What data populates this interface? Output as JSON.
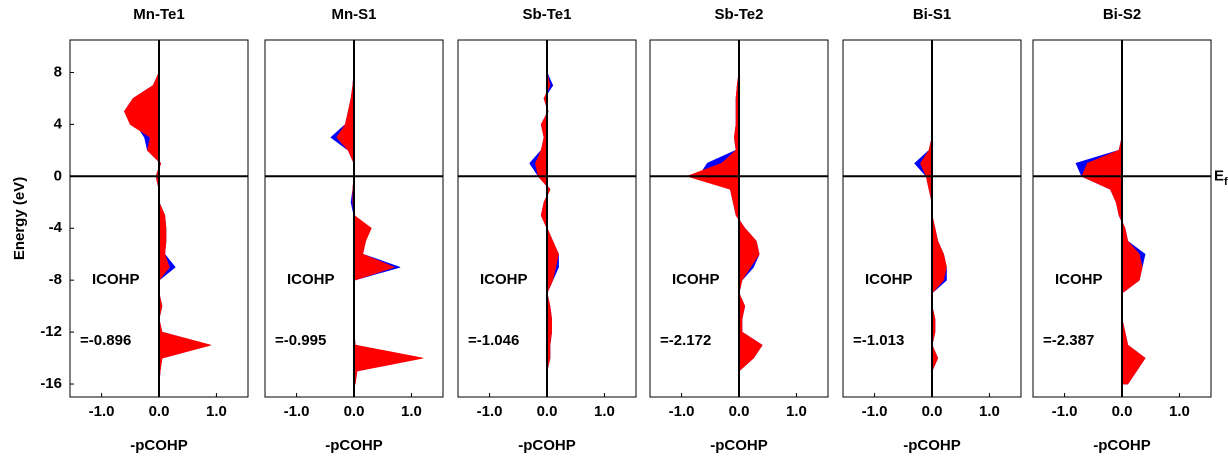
{
  "chart_data": [
    {
      "type": "area",
      "title": "Mn-Te1",
      "xlabel": "-pCOHP",
      "ylabel": "Energy (eV)",
      "annotation": "ICOHP",
      "icohp_label": "=-0.896",
      "xlim": [
        -1.55,
        1.55
      ],
      "ylim": [
        -17,
        10.5
      ],
      "xticks": [
        {
          "value": -1,
          "label": "-1.0"
        },
        {
          "value": 0,
          "label": "0.0"
        },
        {
          "value": 1,
          "label": "1.0"
        }
      ],
      "yticks": [
        -16,
        -12,
        -8,
        -4,
        0,
        4,
        8
      ],
      "y": [
        -16,
        -15,
        -14,
        -13,
        -12,
        -11,
        -10,
        -9,
        -8,
        -7,
        -6,
        -5,
        -4,
        -3,
        -2,
        -1,
        0,
        1,
        2,
        3,
        4,
        5,
        6,
        7,
        8
      ],
      "series": [
        {
          "color": "#0000ff",
          "values": [
            0,
            0.02,
            0.05,
            0.88,
            0.05,
            0,
            0.05,
            0,
            0,
            0.28,
            0.1,
            0.12,
            0.12,
            0.1,
            0,
            0,
            -0.05,
            0.03,
            -0.2,
            -0.25,
            -0.4,
            -0.6,
            -0.45,
            -0.1,
            0
          ]
        },
        {
          "color": "#ff0000",
          "values": [
            0,
            0.02,
            0.05,
            0.9,
            0.05,
            0,
            0.05,
            0,
            0,
            0.18,
            0.1,
            0.12,
            0.12,
            0.1,
            0,
            0,
            -0.05,
            0.03,
            -0.2,
            -0.15,
            -0.5,
            -0.6,
            -0.45,
            -0.1,
            0
          ]
        }
      ]
    },
    {
      "type": "area",
      "title": "Mn-S1",
      "xlabel": "-pCOHP",
      "annotation": "ICOHP",
      "icohp_label": "=-0.995",
      "xlim": [
        -1.55,
        1.55
      ],
      "ylim": [
        -17,
        10.5
      ],
      "xticks": [
        {
          "value": -1,
          "label": "-1.0"
        },
        {
          "value": 0,
          "label": "0.0"
        },
        {
          "value": 1,
          "label": "1.0"
        }
      ],
      "y": [
        -16,
        -15,
        -14,
        -13,
        -12,
        -11,
        -10,
        -9,
        -8,
        -7,
        -6,
        -5,
        -4,
        -3,
        -2,
        -1,
        0,
        1,
        2,
        3,
        4,
        5,
        6,
        7,
        8
      ],
      "series": [
        {
          "color": "#0000ff",
          "values": [
            0.02,
            0.05,
            1.15,
            0.02,
            0,
            0,
            0,
            0,
            0,
            0.8,
            0.15,
            0.2,
            0.25,
            0,
            -0.05,
            -0.02,
            0,
            0,
            -0.1,
            -0.4,
            -0.15,
            -0.1,
            -0.05,
            -0.02,
            0
          ]
        },
        {
          "color": "#ff0000",
          "values": [
            0.02,
            0.05,
            1.2,
            0.02,
            0,
            0,
            0,
            0,
            0,
            0.7,
            0.15,
            0.2,
            0.3,
            0,
            -0.02,
            -0.02,
            0,
            0,
            -0.1,
            -0.3,
            -0.15,
            -0.1,
            -0.05,
            -0.02,
            0
          ]
        }
      ]
    },
    {
      "type": "area",
      "title": "Sb-Te1",
      "xlabel": "-pCOHP",
      "annotation": "ICOHP",
      "icohp_label": "=-1.046",
      "xlim": [
        -1.55,
        1.55
      ],
      "ylim": [
        -17,
        10.5
      ],
      "xticks": [
        {
          "value": -1,
          "label": "-1.0"
        },
        {
          "value": 0,
          "label": "0.0"
        },
        {
          "value": 1,
          "label": "1.0"
        }
      ],
      "y": [
        -16,
        -15,
        -14,
        -13,
        -12,
        -11,
        -10,
        -9,
        -8,
        -7,
        -6,
        -5,
        -4,
        -3,
        -2,
        -1,
        0,
        1,
        2,
        3,
        4,
        5,
        6,
        7,
        8
      ],
      "series": [
        {
          "color": "#0000ff",
          "values": [
            0,
            0,
            0.05,
            0.05,
            0.08,
            0.08,
            0.05,
            0,
            0.1,
            0.2,
            0.2,
            0.1,
            0,
            -0.1,
            -0.05,
            0.05,
            -0.15,
            -0.3,
            -0.1,
            -0.05,
            -0.1,
            0.02,
            -0.05,
            0.1,
            0
          ]
        },
        {
          "color": "#ff0000",
          "values": [
            0,
            0,
            0.05,
            0.05,
            0.08,
            0.08,
            0.05,
            0,
            0.1,
            0.15,
            0.2,
            0.1,
            0,
            -0.1,
            -0.05,
            0.05,
            -0.15,
            -0.2,
            -0.1,
            -0.05,
            -0.1,
            0.02,
            -0.05,
            0.05,
            0
          ]
        }
      ]
    },
    {
      "type": "area",
      "title": "Sb-Te2",
      "xlabel": "-pCOHP",
      "annotation": "ICOHP",
      "icohp_label": "=-2.172",
      "xlim": [
        -1.55,
        1.55
      ],
      "ylim": [
        -17,
        10.5
      ],
      "xticks": [
        {
          "value": -1,
          "label": "-1.0"
        },
        {
          "value": 0,
          "label": "0.0"
        },
        {
          "value": 1,
          "label": "1.0"
        }
      ],
      "y": [
        -16,
        -15,
        -14,
        -13,
        -12,
        -11,
        -10,
        -9,
        -8,
        -7,
        -6,
        -5,
        -4,
        -3,
        -2,
        -1,
        0,
        1,
        2,
        3,
        4,
        5,
        6,
        7,
        8
      ],
      "series": [
        {
          "color": "#0000ff",
          "values": [
            0,
            0,
            0.25,
            0.4,
            0.05,
            0.05,
            0.1,
            0,
            0.05,
            0.25,
            0.35,
            0.3,
            0.1,
            -0.05,
            -0.1,
            -0.15,
            -0.7,
            -0.55,
            -0.05,
            -0.08,
            -0.05,
            -0.05,
            -0.05,
            -0.03,
            0
          ]
        },
        {
          "color": "#ff0000",
          "values": [
            0,
            0,
            0.25,
            0.4,
            0.05,
            0.05,
            0.1,
            0,
            0.05,
            0.2,
            0.35,
            0.3,
            0.1,
            -0.05,
            -0.1,
            -0.15,
            -0.9,
            -0.3,
            -0.05,
            -0.08,
            -0.05,
            -0.05,
            -0.05,
            -0.03,
            0
          ]
        }
      ]
    },
    {
      "type": "area",
      "title": "Bi-S1",
      "xlabel": "-pCOHP",
      "annotation": "ICOHP",
      "icohp_label": "=-1.013",
      "xlim": [
        -1.55,
        1.55
      ],
      "ylim": [
        -17,
        10.5
      ],
      "xticks": [
        {
          "value": -1,
          "label": "-1.0"
        },
        {
          "value": 0,
          "label": "0.0"
        },
        {
          "value": 1,
          "label": "1.0"
        }
      ],
      "y": [
        -16,
        -15,
        -14,
        -13,
        -12,
        -11,
        -10,
        -9,
        -8,
        -7,
        -6,
        -5,
        -4,
        -3,
        -2,
        -1,
        0,
        1,
        2,
        3,
        4,
        5,
        6,
        7,
        8
      ],
      "series": [
        {
          "color": "#0000ff",
          "values": [
            0,
            0,
            0.1,
            0,
            0.05,
            0.05,
            0,
            0,
            0.25,
            0.25,
            0.2,
            0.1,
            0.05,
            0,
            0,
            -0.05,
            -0.1,
            -0.3,
            -0.05,
            0,
            0,
            0,
            0,
            0,
            0
          ]
        },
        {
          "color": "#ff0000",
          "values": [
            0,
            0,
            0.1,
            0,
            0.05,
            0.05,
            0,
            0,
            0.2,
            0.25,
            0.2,
            0.1,
            0.05,
            0,
            0,
            -0.05,
            -0.1,
            -0.2,
            -0.05,
            0,
            0,
            0,
            0,
            0,
            0
          ]
        }
      ]
    },
    {
      "type": "area",
      "title": "Bi-S2",
      "xlabel": "-pCOHP",
      "annotation": "ICOHP",
      "icohp_label": "=-2.387",
      "fermi_label": "E",
      "fermi_label_sub": "f",
      "xlim": [
        -1.55,
        1.55
      ],
      "ylim": [
        -17,
        10.5
      ],
      "xticks": [
        {
          "value": -1,
          "label": "-1.0"
        },
        {
          "value": 0,
          "label": "0.0"
        },
        {
          "value": 1,
          "label": "1.0"
        }
      ],
      "y": [
        -16,
        -15,
        -14,
        -13,
        -12,
        -11,
        -10,
        -9,
        -8,
        -7,
        -6,
        -5,
        -4,
        -3,
        -2,
        -1,
        0,
        1,
        2,
        3,
        4,
        5,
        6,
        7,
        8
      ],
      "series": [
        {
          "color": "#0000ff",
          "values": [
            0.1,
            0.25,
            0.4,
            0.1,
            0.05,
            0,
            0,
            0,
            0.3,
            0.35,
            0.4,
            0.1,
            0.05,
            -0.05,
            -0.1,
            -0.2,
            -0.7,
            -0.8,
            -0.05,
            0,
            0,
            0,
            0,
            0,
            0
          ]
        },
        {
          "color": "#ff0000",
          "values": [
            0.1,
            0.25,
            0.4,
            0.1,
            0.05,
            0,
            0,
            0,
            0.3,
            0.35,
            0.3,
            0.1,
            0.05,
            -0.05,
            -0.1,
            -0.2,
            -0.7,
            -0.6,
            -0.05,
            0,
            0,
            0,
            0,
            0,
            0
          ]
        }
      ]
    }
  ]
}
